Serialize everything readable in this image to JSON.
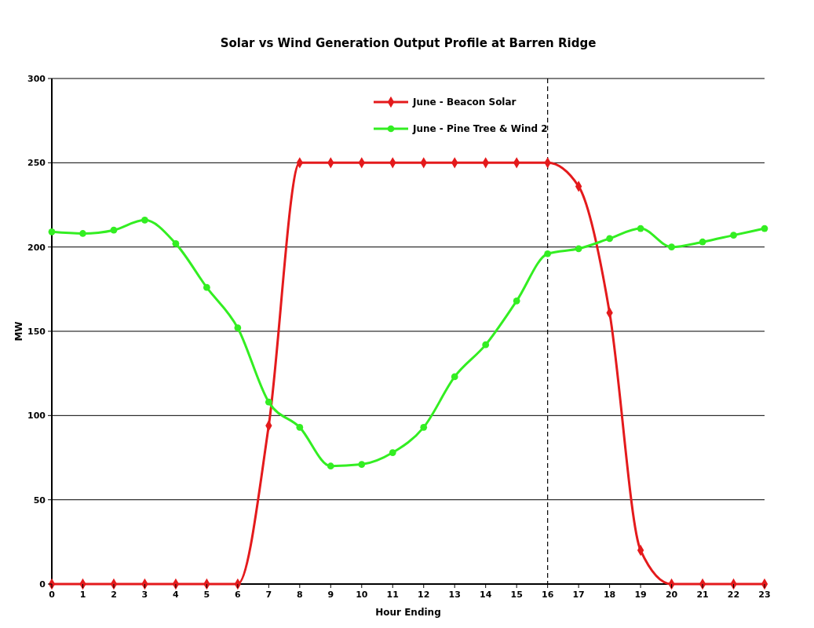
{
  "chart_data": {
    "type": "line",
    "title": "Solar vs Wind Generation Output Profile at Barren Ridge",
    "xlabel": "Hour Ending",
    "ylabel": "MW",
    "x": [
      0,
      1,
      2,
      3,
      4,
      5,
      6,
      7,
      8,
      9,
      10,
      11,
      12,
      13,
      14,
      15,
      16,
      17,
      18,
      19,
      20,
      21,
      22,
      23
    ],
    "series": [
      {
        "name": "June - Beacon Solar",
        "color": "#e41a1c",
        "marker": "diamond",
        "values": [
          0,
          0,
          0,
          0,
          0,
          0,
          0,
          94,
          250,
          250,
          250,
          250,
          250,
          250,
          250,
          250,
          250,
          236,
          161,
          20,
          0,
          0,
          0,
          0
        ]
      },
      {
        "name": "June - Pine Tree & Wind 2",
        "color": "#33ee22",
        "marker": "circle",
        "values": [
          209,
          208,
          210,
          216,
          202,
          176,
          152,
          108,
          93,
          70,
          71,
          78,
          93,
          123,
          142,
          168,
          196,
          199,
          205,
          211,
          200,
          203,
          207,
          211
        ]
      }
    ],
    "xlim": [
      0,
      23
    ],
    "xticks": [
      0,
      1,
      2,
      3,
      4,
      5,
      6,
      7,
      8,
      9,
      10,
      11,
      12,
      13,
      14,
      15,
      16,
      17,
      18,
      19,
      20,
      21,
      22,
      23
    ],
    "ylim": [
      0,
      300
    ],
    "yticks": [
      0,
      50,
      100,
      150,
      200,
      250,
      300
    ],
    "grid": "y",
    "legend": "top",
    "line_style": "solid",
    "ref_lines": [
      {
        "axis": "x",
        "value": 16,
        "line_style": "dashed",
        "color": "#000000"
      }
    ]
  }
}
